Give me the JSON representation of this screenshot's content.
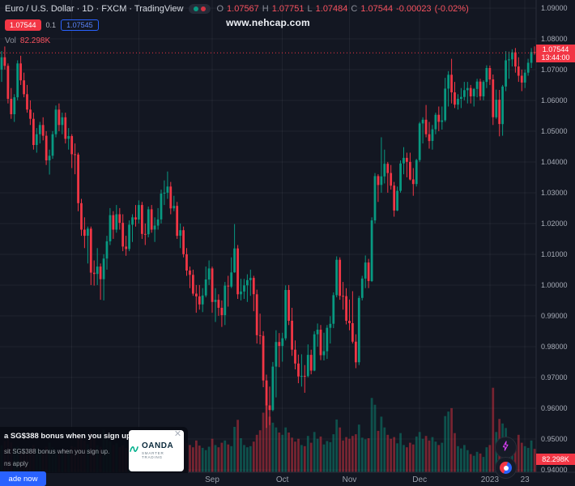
{
  "header": {
    "symbol_title": "Euro / U.S. Dollar · 1D · FXCM · TradingView",
    "ohlc": {
      "o_label": "O",
      "o": "1.07567",
      "h_label": "H",
      "h": "1.07751",
      "l_label": "L",
      "l": "1.07484",
      "c_label": "C",
      "c": "1.07544",
      "change": "-0.00023",
      "change_pct": "(-0.02%)"
    },
    "sell_price": "1.07544",
    "spread": "0.1",
    "buy_price": "1.07545",
    "vol_label": "Vol",
    "vol_value": "82.298K"
  },
  "watermark": "www.nehcap.com",
  "price_axis": {
    "labels": [
      "1.09000",
      "1.08000",
      "1.07000",
      "1.06000",
      "1.05000",
      "1.04000",
      "1.03000",
      "1.02000",
      "1.01000",
      "1.00000",
      "0.99000",
      "0.98000",
      "0.97000",
      "0.96000",
      "0.95000",
      "0.94000"
    ],
    "last_price_label": "1.07544",
    "countdown": "13:44:00",
    "volume_label": "82.298K"
  },
  "ad": {
    "line1": "a SG$388 bonus when you sign up.",
    "line2": "sit SG$388 bonus when you sign up.",
    "line3": "ns apply",
    "close": "✕",
    "button_label": "ade now",
    "brand_name": "OANDA",
    "brand_tagline": "SMARTER TRADING"
  },
  "colors": {
    "background": "#131722",
    "up": "#089981",
    "down": "#f23645",
    "accent_red": "#f23645",
    "accent_blue": "#2962ff",
    "grid": "rgba(255,255,255,0.055)",
    "axis_text": "#a8adb8",
    "axis_border": "#2a2e39"
  },
  "chart_data": {
    "type": "candlestick",
    "symbol": "EUR/USD",
    "title": "Euro / U.S. Dollar",
    "interval": "1D",
    "source": "FXCM",
    "last_price": 1.07544,
    "last_change": -0.00023,
    "last_change_pct": -0.02,
    "last_volume_k": 82.298,
    "price_ticks": [
      1.09,
      1.08,
      1.07,
      1.06,
      1.05,
      1.04,
      1.03,
      1.02,
      1.01,
      1.0,
      0.99,
      0.98,
      0.97,
      0.96,
      0.95,
      0.94
    ],
    "time_ticks": [
      {
        "label": "Sep",
        "index": 66
      },
      {
        "label": "Oct",
        "index": 88
      },
      {
        "label": "Nov",
        "index": 109
      },
      {
        "label": "Dec",
        "index": 131
      },
      {
        "label": "2023",
        "index": 153
      },
      {
        "label": "23",
        "index": 164
      }
    ],
    "gridline_indices": [
      22,
      43
    ],
    "volume_scale_max": 300,
    "candles_format": [
      "open",
      "high",
      "low",
      "close",
      "volume_k"
    ],
    "candles": [
      [
        1.07,
        1.076,
        1.066,
        1.074,
        95
      ],
      [
        1.074,
        1.0775,
        1.07,
        1.0712,
        110
      ],
      [
        1.0712,
        1.072,
        1.059,
        1.0605,
        120
      ],
      [
        1.0605,
        1.064,
        1.054,
        1.0555,
        105
      ],
      [
        1.0555,
        1.062,
        1.053,
        1.061,
        88
      ],
      [
        1.061,
        1.073,
        1.06,
        1.072,
        92
      ],
      [
        1.072,
        1.0745,
        1.065,
        1.0665,
        75
      ],
      [
        1.0665,
        1.069,
        1.061,
        1.062,
        70
      ],
      [
        1.062,
        1.065,
        1.056,
        1.057,
        82
      ],
      [
        1.057,
        1.06,
        1.052,
        1.054,
        78
      ],
      [
        1.054,
        1.056,
        1.044,
        1.0455,
        96
      ],
      [
        1.0455,
        1.051,
        1.043,
        1.049,
        85
      ],
      [
        1.049,
        1.053,
        1.046,
        1.052,
        72
      ],
      [
        1.052,
        1.0545,
        1.047,
        1.0485,
        68
      ],
      [
        1.0485,
        1.05,
        1.039,
        1.0405,
        90
      ],
      [
        1.0405,
        1.044,
        1.0359,
        1.042,
        104
      ],
      [
        1.042,
        1.05,
        1.041,
        1.049,
        88
      ],
      [
        1.049,
        1.0583,
        1.048,
        1.057,
        79
      ],
      [
        1.057,
        1.059,
        1.05,
        1.052,
        74
      ],
      [
        1.052,
        1.056,
        1.049,
        1.0545,
        66
      ],
      [
        1.0545,
        1.056,
        1.046,
        1.0475,
        81
      ],
      [
        1.0475,
        1.051,
        1.044,
        1.0484,
        77
      ],
      [
        1.0484,
        1.049,
        1.038,
        1.0425,
        92
      ],
      [
        1.0425,
        1.046,
        1.036,
        1.0424,
        88
      ],
      [
        1.0424,
        1.043,
        1.024,
        1.0266,
        135
      ],
      [
        1.0266,
        1.028,
        1.016,
        1.018,
        128
      ],
      [
        1.018,
        1.022,
        1.012,
        1.016,
        112
      ],
      [
        1.016,
        1.019,
        1.007,
        1.0183,
        98
      ],
      [
        1.0183,
        1.019,
        1.0,
        1.004,
        142
      ],
      [
        1.004,
        1.008,
        0.9998,
        1.0036,
        120
      ],
      [
        1.0036,
        1.012,
        1.0,
        1.006,
        95
      ],
      [
        1.006,
        1.007,
        0.9952,
        1.0019,
        90
      ],
      [
        1.0019,
        1.01,
        0.995,
        1.0086,
        150
      ],
      [
        1.0086,
        1.016,
        1.005,
        1.0142,
        118
      ],
      [
        1.0142,
        1.025,
        1.013,
        1.0227,
        108
      ],
      [
        1.0227,
        1.024,
        1.015,
        1.018,
        96
      ],
      [
        1.018,
        1.026,
        1.017,
        1.023,
        102
      ],
      [
        1.023,
        1.025,
        1.018,
        1.0202,
        88
      ],
      [
        1.0202,
        1.023,
        1.011,
        1.0125,
        94
      ],
      [
        1.0125,
        1.016,
        1.0095,
        1.0117,
        86
      ],
      [
        1.0117,
        1.021,
        1.011,
        1.0196,
        80
      ],
      [
        1.0196,
        1.023,
        1.014,
        1.022,
        92
      ],
      [
        1.022,
        1.026,
        1.019,
        1.0213,
        84
      ],
      [
        1.0213,
        1.0275,
        1.02,
        1.026,
        78
      ],
      [
        1.026,
        1.027,
        1.015,
        1.0166,
        84
      ],
      [
        1.0166,
        1.02,
        1.013,
        1.0165,
        72
      ],
      [
        1.0165,
        1.0255,
        1.0155,
        1.0246,
        88
      ],
      [
        1.0246,
        1.026,
        1.017,
        1.018,
        76
      ],
      [
        1.018,
        1.022,
        1.014,
        1.0193,
        70
      ],
      [
        1.0193,
        1.025,
        1.018,
        1.0213,
        66
      ],
      [
        1.0213,
        1.031,
        1.02,
        1.0297,
        92
      ],
      [
        1.0297,
        1.034,
        1.026,
        1.03,
        86
      ],
      [
        1.03,
        1.0369,
        1.028,
        1.032,
        98
      ],
      [
        1.032,
        1.0335,
        1.023,
        1.0249,
        90
      ],
      [
        1.0249,
        1.029,
        1.024,
        1.0257,
        74
      ],
      [
        1.0257,
        1.027,
        1.015,
        1.016,
        96
      ],
      [
        1.016,
        1.02,
        1.012,
        1.0178,
        82
      ],
      [
        1.0178,
        1.019,
        1.009,
        1.01,
        108
      ],
      [
        1.01,
        1.012,
        1.003,
        1.0047,
        102
      ],
      [
        1.0047,
        1.006,
        0.999,
        1.0033,
        96
      ],
      [
        1.0033,
        1.005,
        0.9965,
        0.9972,
        88
      ],
      [
        0.9972,
        1.0,
        0.991,
        0.9963,
        112
      ],
      [
        0.9963,
        1.0,
        0.992,
        0.9937,
        94
      ],
      [
        0.9937,
        0.999,
        0.9912,
        0.9966,
        86
      ],
      [
        0.9966,
        1.006,
        0.996,
        1.0018,
        78
      ],
      [
        1.0018,
        1.008,
        1.0,
        1.0054,
        90
      ],
      [
        1.0054,
        1.006,
        0.991,
        0.9945,
        118
      ],
      [
        0.9945,
        0.999,
        0.988,
        0.9952,
        96
      ],
      [
        0.9952,
        0.997,
        0.99,
        0.9926,
        88
      ],
      [
        0.9926,
        0.995,
        0.9864,
        0.9902,
        104
      ],
      [
        0.9902,
        1.001,
        0.987,
        0.9998,
        112
      ],
      [
        0.9998,
        1.003,
        0.993,
        0.9995,
        98
      ],
      [
        0.9995,
        1.009,
        0.999,
        1.0041,
        92
      ],
      [
        1.0041,
        1.0198,
        1.004,
        1.0119,
        160
      ],
      [
        1.0119,
        1.013,
        0.9955,
        0.997,
        185
      ],
      [
        0.997,
        1.002,
        0.995,
        0.9979,
        120
      ],
      [
        0.9979,
        1.002,
        0.9955,
        0.9999,
        96
      ],
      [
        0.9999,
        1.0035,
        0.9945,
        1.0016,
        88
      ],
      [
        1.0016,
        1.005,
        0.9965,
        1.0023,
        92
      ],
      [
        1.0023,
        1.003,
        0.9915,
        0.997,
        108
      ],
      [
        0.997,
        0.9985,
        0.981,
        0.9837,
        132
      ],
      [
        0.9837,
        0.9907,
        0.9807,
        0.9835,
        148
      ],
      [
        0.9835,
        0.985,
        0.9668,
        0.969,
        210
      ],
      [
        0.969,
        0.9709,
        0.9536,
        0.9609,
        238
      ],
      [
        0.9609,
        0.967,
        0.9545,
        0.9594,
        196
      ],
      [
        0.9594,
        0.975,
        0.959,
        0.9735,
        175
      ],
      [
        0.9735,
        0.9853,
        0.9635,
        0.9815,
        158
      ],
      [
        0.9815,
        0.9844,
        0.9733,
        0.9802,
        140
      ],
      [
        0.9802,
        0.9845,
        0.9751,
        0.9827,
        132
      ],
      [
        0.9827,
        0.9999,
        0.982,
        0.9984,
        158
      ],
      [
        0.9984,
        1.0,
        0.987,
        0.9884,
        140
      ],
      [
        0.9884,
        0.9926,
        0.977,
        0.979,
        122
      ],
      [
        0.979,
        0.982,
        0.9726,
        0.9745,
        108
      ],
      [
        0.9745,
        0.9774,
        0.9681,
        0.9703,
        118
      ],
      [
        0.9703,
        0.9775,
        0.967,
        0.9705,
        96
      ],
      [
        0.9705,
        0.974,
        0.965,
        0.9704,
        92
      ],
      [
        0.9704,
        0.9807,
        0.97,
        0.9773,
        128
      ],
      [
        0.9773,
        0.979,
        0.971,
        0.9722,
        104
      ],
      [
        0.9722,
        0.985,
        0.972,
        0.984,
        142
      ],
      [
        0.984,
        0.9875,
        0.98,
        0.9855,
        118
      ],
      [
        0.9855,
        0.987,
        0.9756,
        0.9772,
        126
      ],
      [
        0.9772,
        0.9845,
        0.9755,
        0.9785,
        98
      ],
      [
        0.9785,
        0.987,
        0.976,
        0.9861,
        110
      ],
      [
        0.9861,
        0.9899,
        0.981,
        0.9874,
        106
      ],
      [
        0.9874,
        0.9976,
        0.986,
        0.9967,
        134
      ],
      [
        0.9967,
        1.0093,
        0.996,
        1.0082,
        186
      ],
      [
        1.0082,
        1.009,
        0.9952,
        0.9965,
        158
      ],
      [
        0.9965,
        1.001,
        0.992,
        0.9964,
        112
      ],
      [
        0.9964,
        0.999,
        0.9872,
        0.9884,
        124
      ],
      [
        0.9884,
        0.9953,
        0.9853,
        0.9876,
        118
      ],
      [
        0.9876,
        0.998,
        0.981,
        0.9816,
        128
      ],
      [
        0.9816,
        0.984,
        0.973,
        0.9749,
        134
      ],
      [
        0.9749,
        0.9965,
        0.974,
        0.9958,
        168
      ],
      [
        0.9958,
        1.003,
        0.995,
        1.0021,
        122
      ],
      [
        1.0021,
        1.0096,
        0.999,
        1.0073,
        116
      ],
      [
        1.0073,
        1.0085,
        0.999,
        1.0013,
        120
      ],
      [
        1.0013,
        1.022,
        1.001,
        1.021,
        262
      ],
      [
        1.021,
        1.0364,
        1.02,
        1.0354,
        238
      ],
      [
        1.0354,
        1.036,
        1.027,
        1.0325,
        146
      ],
      [
        1.0325,
        1.048,
        1.03,
        1.0353,
        196
      ],
      [
        1.0353,
        1.044,
        1.033,
        1.0394,
        158
      ],
      [
        1.0394,
        1.04,
        1.03,
        1.0364,
        132
      ],
      [
        1.0364,
        1.039,
        1.031,
        1.0323,
        118
      ],
      [
        1.0323,
        1.0335,
        1.0222,
        1.0242,
        124
      ],
      [
        1.0242,
        1.032,
        1.024,
        1.0306,
        102
      ],
      [
        1.0306,
        1.0405,
        1.03,
        1.0395,
        138
      ],
      [
        1.0395,
        1.0448,
        1.036,
        1.0413,
        96
      ],
      [
        1.0413,
        1.043,
        1.035,
        1.04,
        88
      ],
      [
        1.04,
        1.043,
        1.034,
        1.0343,
        104
      ],
      [
        1.0343,
        1.038,
        1.029,
        1.0328,
        98
      ],
      [
        1.0328,
        1.041,
        1.032,
        1.0406,
        126
      ],
      [
        1.0406,
        1.053,
        1.04,
        1.0525,
        142
      ],
      [
        1.0525,
        1.0545,
        1.046,
        1.0537,
        118
      ],
      [
        1.0537,
        1.0585,
        1.048,
        1.049,
        128
      ],
      [
        1.049,
        1.053,
        1.0443,
        1.0468,
        112
      ],
      [
        1.0468,
        1.052,
        1.044,
        1.0506,
        124
      ],
      [
        1.0506,
        1.056,
        1.049,
        1.0553,
        108
      ],
      [
        1.0553,
        1.058,
        1.05,
        1.053,
        96
      ],
      [
        1.053,
        1.058,
        1.0505,
        1.0535,
        104
      ],
      [
        1.0535,
        1.0673,
        1.053,
        1.0638,
        198
      ],
      [
        1.0638,
        1.0695,
        1.058,
        1.0683,
        214
      ],
      [
        1.0683,
        1.0735,
        1.059,
        1.0626,
        226
      ],
      [
        1.0626,
        1.066,
        1.0575,
        1.0586,
        138
      ],
      [
        1.0586,
        1.062,
        1.057,
        1.0605,
        92
      ],
      [
        1.0605,
        1.064,
        1.0575,
        1.0611,
        84
      ],
      [
        1.0611,
        1.066,
        1.06,
        1.0633,
        96
      ],
      [
        1.0633,
        1.066,
        1.059,
        1.064,
        78
      ],
      [
        1.064,
        1.065,
        1.059,
        1.0613,
        64
      ],
      [
        1.0613,
        1.064,
        1.058,
        1.0637,
        58
      ],
      [
        1.0637,
        1.067,
        1.061,
        1.0661,
        72
      ],
      [
        1.0661,
        1.067,
        1.06,
        1.0613,
        66
      ],
      [
        1.0613,
        1.0665,
        1.06,
        1.066,
        54
      ],
      [
        1.066,
        1.0714,
        1.064,
        1.0705,
        88
      ],
      [
        1.0705,
        1.0713,
        1.065,
        1.0668,
        96
      ],
      [
        1.0668,
        1.0684,
        1.052,
        1.0545,
        298
      ],
      [
        1.0545,
        1.0635,
        1.054,
        1.0602,
        142
      ],
      [
        1.0602,
        1.0634,
        1.0483,
        1.0523,
        188
      ],
      [
        1.0523,
        1.065,
        1.0485,
        1.0645,
        172
      ],
      [
        1.0645,
        1.076,
        1.063,
        1.073,
        156
      ],
      [
        1.073,
        1.0758,
        1.067,
        1.0733,
        118
      ],
      [
        1.0733,
        1.0766,
        1.071,
        1.0756,
        108
      ],
      [
        1.0756,
        1.077,
        1.069,
        1.071,
        96
      ],
      [
        1.071,
        1.074,
        1.066,
        1.068,
        132
      ],
      [
        1.068,
        1.07,
        1.063,
        1.0658,
        104
      ],
      [
        1.0658,
        1.07,
        1.064,
        1.069,
        92
      ],
      [
        1.069,
        1.0735,
        1.068,
        1.0722,
        86
      ],
      [
        1.0722,
        1.077,
        1.0705,
        1.0757,
        112
      ],
      [
        1.07567,
        1.07751,
        1.07484,
        1.07544,
        82.298
      ]
    ]
  }
}
